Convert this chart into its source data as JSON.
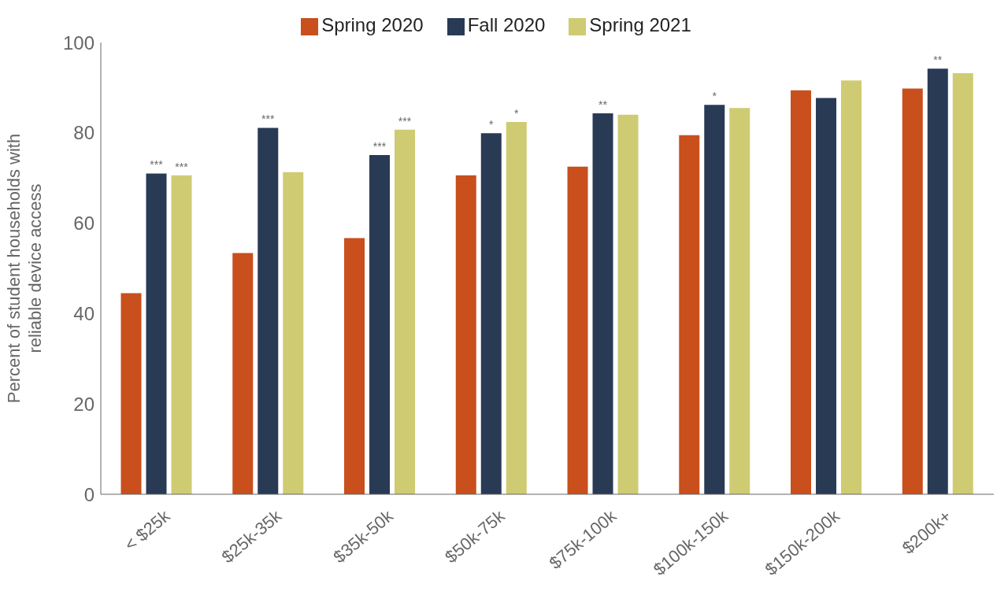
{
  "chart_data": {
    "type": "bar",
    "ylabel": "Percent of student households with reliable device access",
    "categories": [
      "< $25k",
      "$25k-35k",
      "$35k-50k",
      "$50k-75k",
      "$75k-100k",
      "$100k-150k",
      "$150k-200k",
      "$200k+"
    ],
    "series": [
      {
        "name": "Spring 2020",
        "color": "#c94f1d",
        "values": [
          44.5,
          53.4,
          56.7,
          70.6,
          72.5,
          79.5,
          89.4,
          89.8
        ]
      },
      {
        "name": "Fall 2020",
        "color": "#293a55",
        "values": [
          71.0,
          81.1,
          75.1,
          79.9,
          84.3,
          86.2,
          87.7,
          94.2
        ],
        "value_labels": [
          "***",
          "***",
          "***",
          "*",
          "**",
          "*",
          null,
          "**"
        ]
      },
      {
        "name": "Spring 2021",
        "color": "#cfcb72",
        "values": [
          70.6,
          71.3,
          80.7,
          82.4,
          84.0,
          85.5,
          91.6,
          93.2
        ],
        "value_labels": [
          "***",
          null,
          "***",
          "*",
          null,
          null,
          null,
          null
        ]
      }
    ],
    "ylim": [
      0,
      100
    ],
    "yticks": [
      0,
      20,
      40,
      60,
      80,
      100
    ],
    "grid": false,
    "legend": "top"
  }
}
